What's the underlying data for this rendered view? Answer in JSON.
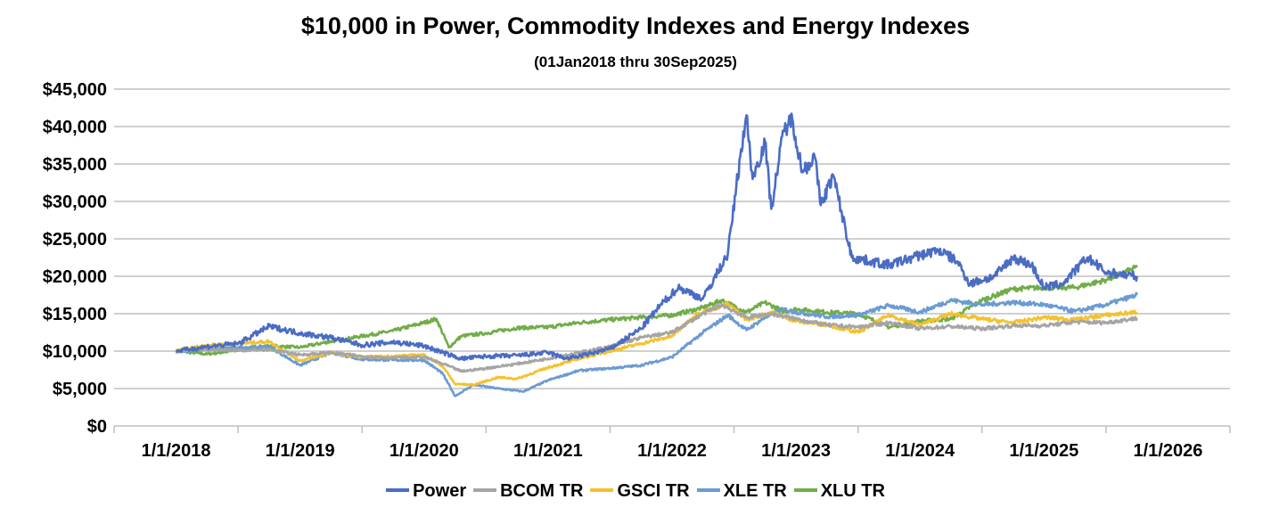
{
  "chart_data": {
    "type": "line",
    "title": "$10,000 in Power, Commodity Indexes and Energy Indexes",
    "subtitle": "(01Jan2018 thru 30Sep2025)",
    "xlabel": "",
    "ylabel": "",
    "ylim": [
      0,
      45000
    ],
    "yticks": [
      "$0",
      "$5,000",
      "$10,000",
      "$15,000",
      "$20,000",
      "$25,000",
      "$30,000",
      "$35,000",
      "$40,000",
      "$45,000"
    ],
    "xticks": [
      "1/1/2018",
      "1/1/2019",
      "1/1/2020",
      "1/1/2021",
      "1/1/2022",
      "1/1/2023",
      "1/1/2024",
      "1/1/2025",
      "1/1/2026"
    ],
    "xlim": [
      2017.5,
      2026.5
    ],
    "grid": true,
    "legend_position": "bottom",
    "series": [
      {
        "name": "Power",
        "color": "#4A6CC4",
        "points": [
          [
            2018.0,
            10000
          ],
          [
            2018.25,
            10600
          ],
          [
            2018.5,
            11000
          ],
          [
            2018.75,
            13300
          ],
          [
            2019.0,
            12400
          ],
          [
            2019.25,
            11800
          ],
          [
            2019.5,
            10800
          ],
          [
            2019.75,
            11200
          ],
          [
            2020.0,
            10700
          ],
          [
            2020.15,
            9800
          ],
          [
            2020.3,
            9000
          ],
          [
            2020.5,
            9300
          ],
          [
            2020.75,
            9400
          ],
          [
            2021.0,
            9800
          ],
          [
            2021.15,
            9000
          ],
          [
            2021.3,
            9500
          ],
          [
            2021.5,
            10300
          ],
          [
            2021.75,
            13000
          ],
          [
            2021.9,
            16000
          ],
          [
            2022.05,
            18500
          ],
          [
            2022.25,
            17000
          ],
          [
            2022.45,
            23000
          ],
          [
            2022.55,
            36000
          ],
          [
            2022.6,
            41500
          ],
          [
            2022.65,
            33000
          ],
          [
            2022.75,
            38000
          ],
          [
            2022.8,
            29000
          ],
          [
            2022.9,
            39500
          ],
          [
            2022.97,
            41000
          ],
          [
            2023.05,
            34000
          ],
          [
            2023.15,
            36000
          ],
          [
            2023.2,
            29500
          ],
          [
            2023.3,
            33500
          ],
          [
            2023.45,
            22500
          ],
          [
            2023.6,
            22000
          ],
          [
            2023.75,
            21500
          ],
          [
            2024.0,
            22800
          ],
          [
            2024.15,
            23500
          ],
          [
            2024.3,
            22000
          ],
          [
            2024.4,
            19000
          ],
          [
            2024.6,
            20000
          ],
          [
            2024.75,
            22500
          ],
          [
            2024.9,
            21500
          ],
          [
            2025.0,
            18500
          ],
          [
            2025.15,
            19000
          ],
          [
            2025.35,
            22500
          ],
          [
            2025.5,
            20500
          ],
          [
            2025.75,
            20000
          ]
        ]
      },
      {
        "name": "BCOM TR",
        "color": "#A5A5A5",
        "points": [
          [
            2018.0,
            10000
          ],
          [
            2018.25,
            10300
          ],
          [
            2018.5,
            10100
          ],
          [
            2018.75,
            10200
          ],
          [
            2019.0,
            9500
          ],
          [
            2019.25,
            9800
          ],
          [
            2019.5,
            9300
          ],
          [
            2019.75,
            9100
          ],
          [
            2020.0,
            9200
          ],
          [
            2020.2,
            8000
          ],
          [
            2020.3,
            7300
          ],
          [
            2020.5,
            7700
          ],
          [
            2020.75,
            8300
          ],
          [
            2021.0,
            9000
          ],
          [
            2021.25,
            9800
          ],
          [
            2021.5,
            10600
          ],
          [
            2021.75,
            11800
          ],
          [
            2022.0,
            12500
          ],
          [
            2022.25,
            15000
          ],
          [
            2022.4,
            16200
          ],
          [
            2022.6,
            14500
          ],
          [
            2022.8,
            15000
          ],
          [
            2023.0,
            14300
          ],
          [
            2023.25,
            13500
          ],
          [
            2023.5,
            13200
          ],
          [
            2023.75,
            13800
          ],
          [
            2024.0,
            13000
          ],
          [
            2024.25,
            13300
          ],
          [
            2024.5,
            13000
          ],
          [
            2024.75,
            13400
          ],
          [
            2025.0,
            13400
          ],
          [
            2025.25,
            13900
          ],
          [
            2025.5,
            13800
          ],
          [
            2025.75,
            14400
          ]
        ]
      },
      {
        "name": "GSCI TR",
        "color": "#F4C12E",
        "points": [
          [
            2018.0,
            10000
          ],
          [
            2018.25,
            10800
          ],
          [
            2018.5,
            11000
          ],
          [
            2018.75,
            11300
          ],
          [
            2019.0,
            8700
          ],
          [
            2019.25,
            9800
          ],
          [
            2019.5,
            9200
          ],
          [
            2019.75,
            9300
          ],
          [
            2020.0,
            9500
          ],
          [
            2020.15,
            8000
          ],
          [
            2020.25,
            5600
          ],
          [
            2020.4,
            5500
          ],
          [
            2020.6,
            6500
          ],
          [
            2020.75,
            6300
          ],
          [
            2021.0,
            7800
          ],
          [
            2021.25,
            9000
          ],
          [
            2021.5,
            10000
          ],
          [
            2021.75,
            11000
          ],
          [
            2022.0,
            12000
          ],
          [
            2022.2,
            15000
          ],
          [
            2022.45,
            16300
          ],
          [
            2022.6,
            14200
          ],
          [
            2022.8,
            15200
          ],
          [
            2023.0,
            14000
          ],
          [
            2023.25,
            13500
          ],
          [
            2023.5,
            12500
          ],
          [
            2023.75,
            14800
          ],
          [
            2024.0,
            13500
          ],
          [
            2024.25,
            15000
          ],
          [
            2024.5,
            14300
          ],
          [
            2024.75,
            13800
          ],
          [
            2025.0,
            14500
          ],
          [
            2025.25,
            14200
          ],
          [
            2025.5,
            14800
          ],
          [
            2025.75,
            15200
          ]
        ]
      },
      {
        "name": "XLE TR",
        "color": "#6B9BD2",
        "points": [
          [
            2018.0,
            10000
          ],
          [
            2018.25,
            10200
          ],
          [
            2018.5,
            10500
          ],
          [
            2018.75,
            10600
          ],
          [
            2019.0,
            8100
          ],
          [
            2019.25,
            9800
          ],
          [
            2019.5,
            8900
          ],
          [
            2019.75,
            8800
          ],
          [
            2020.0,
            8800
          ],
          [
            2020.15,
            7000
          ],
          [
            2020.25,
            4000
          ],
          [
            2020.4,
            5500
          ],
          [
            2020.6,
            5000
          ],
          [
            2020.8,
            4600
          ],
          [
            2021.0,
            6100
          ],
          [
            2021.25,
            7400
          ],
          [
            2021.5,
            7700
          ],
          [
            2021.75,
            8100
          ],
          [
            2022.0,
            9200
          ],
          [
            2022.25,
            12500
          ],
          [
            2022.45,
            14800
          ],
          [
            2022.6,
            12800
          ],
          [
            2022.75,
            14500
          ],
          [
            2022.9,
            15600
          ],
          [
            2023.0,
            15200
          ],
          [
            2023.25,
            14600
          ],
          [
            2023.5,
            14800
          ],
          [
            2023.75,
            16100
          ],
          [
            2024.0,
            15200
          ],
          [
            2024.25,
            16800
          ],
          [
            2024.5,
            16200
          ],
          [
            2024.75,
            16500
          ],
          [
            2025.0,
            16200
          ],
          [
            2025.25,
            15300
          ],
          [
            2025.5,
            16200
          ],
          [
            2025.75,
            17500
          ]
        ]
      },
      {
        "name": "XLU TR",
        "color": "#70AD47",
        "points": [
          [
            2018.0,
            10000
          ],
          [
            2018.25,
            9600
          ],
          [
            2018.5,
            10100
          ],
          [
            2018.75,
            10700
          ],
          [
            2019.0,
            10500
          ],
          [
            2019.25,
            11300
          ],
          [
            2019.5,
            12000
          ],
          [
            2019.75,
            12700
          ],
          [
            2020.0,
            13800
          ],
          [
            2020.1,
            14300
          ],
          [
            2020.2,
            10500
          ],
          [
            2020.3,
            12000
          ],
          [
            2020.5,
            12400
          ],
          [
            2020.75,
            13100
          ],
          [
            2021.0,
            13200
          ],
          [
            2021.25,
            13800
          ],
          [
            2021.5,
            14200
          ],
          [
            2021.75,
            14500
          ],
          [
            2022.0,
            14800
          ],
          [
            2022.25,
            15800
          ],
          [
            2022.4,
            16800
          ],
          [
            2022.6,
            15200
          ],
          [
            2022.75,
            16500
          ],
          [
            2022.9,
            15300
          ],
          [
            2023.0,
            15600
          ],
          [
            2023.25,
            15200
          ],
          [
            2023.5,
            15000
          ],
          [
            2023.75,
            13200
          ],
          [
            2024.0,
            14000
          ],
          [
            2024.25,
            14300
          ],
          [
            2024.5,
            16800
          ],
          [
            2024.75,
            18300
          ],
          [
            2025.0,
            18500
          ],
          [
            2025.25,
            18500
          ],
          [
            2025.5,
            19500
          ],
          [
            2025.75,
            21200
          ]
        ]
      }
    ]
  }
}
